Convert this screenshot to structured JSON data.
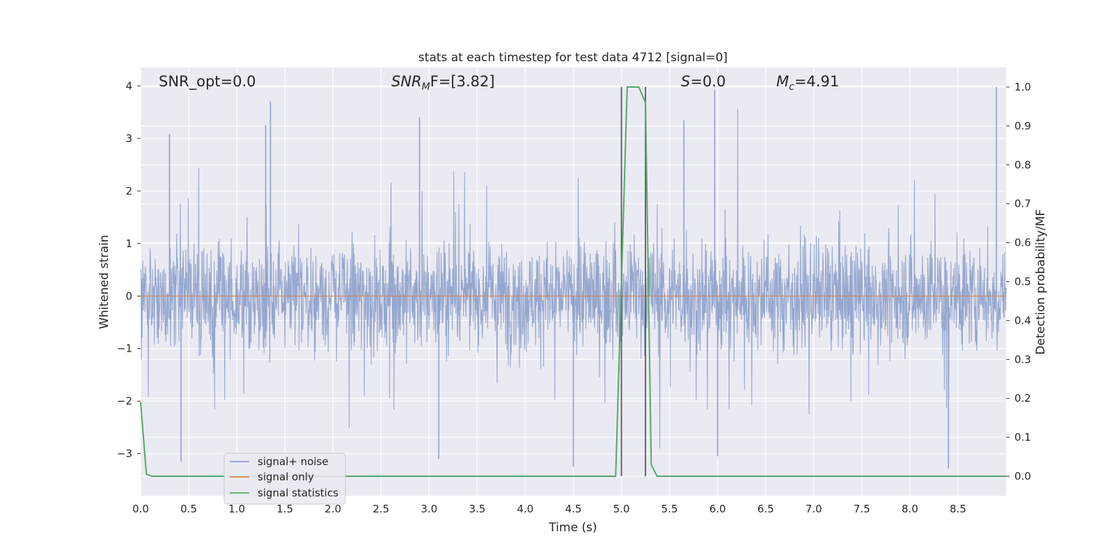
{
  "chart_data": {
    "type": "line",
    "title": "stats at each timestep for test data 4712 [signal=0]",
    "xlabel": "Time (s)",
    "ylabel": "Whitened strain",
    "y2label": "Detection probability/MF",
    "xlim": [
      0.0,
      9.0
    ],
    "ylim": [
      -3.8,
      4.35
    ],
    "y2lim": [
      -0.05,
      1.05
    ],
    "xticks": [
      0.0,
      0.5,
      1.0,
      1.5,
      2.0,
      2.5,
      3.0,
      3.5,
      4.0,
      4.5,
      5.0,
      5.5,
      6.0,
      6.5,
      7.0,
      7.5,
      8.0,
      8.5
    ],
    "xtick_labels": [
      "0.0",
      "0.5",
      "1.0",
      "1.5",
      "2.0",
      "2.5",
      "3.0",
      "3.5",
      "4.0",
      "4.5",
      "5.0",
      "5.5",
      "6.0",
      "6.5",
      "7.0",
      "7.5",
      "8.0",
      "8.5"
    ],
    "yticks": [
      -3,
      -2,
      -1,
      0,
      1,
      2,
      3,
      4
    ],
    "ytick_labels": [
      "−3",
      "−2",
      "−1",
      "0",
      "1",
      "2",
      "3",
      "4"
    ],
    "y2ticks": [
      0.0,
      0.1,
      0.2,
      0.3,
      0.4,
      0.5,
      0.6,
      0.7,
      0.8,
      0.9,
      1.0
    ],
    "y2tick_labels": [
      "0.0",
      "0.1",
      "0.2",
      "0.3",
      "0.4",
      "0.5",
      "0.6",
      "0.7",
      "0.8",
      "0.9",
      "1.0"
    ],
    "grid": true,
    "legend_position": "lower-left",
    "annotations": {
      "snr_opt": "SNR_opt=0.0",
      "snr_mf_main": "SNR",
      "snr_mf_sub": "M",
      "snr_mf_rest": "F=[3.82]",
      "s_main": "S",
      "s_rest": "=0.0",
      "mc_main": "M",
      "mc_sub": "c",
      "mc_rest": "=4.91"
    },
    "series": [
      {
        "name": "signal+ noise",
        "color": "#8da0cb",
        "kind": "noise",
        "approx_envelope": {
          "typical_min": -1.9,
          "typical_max": 1.8,
          "peak_max": 4.0,
          "peak_min": -3.3
        },
        "notable_peaks": [
          {
            "x": 1.35,
            "y": 3.7
          },
          {
            "x": 1.3,
            "y": 3.25
          },
          {
            "x": 2.9,
            "y": 3.4
          },
          {
            "x": 5.97,
            "y": 3.92
          },
          {
            "x": 8.9,
            "y": 3.98
          },
          {
            "x": 5.65,
            "y": 3.35
          },
          {
            "x": 0.3,
            "y": 3.08
          },
          {
            "x": 0.42,
            "y": -3.15
          },
          {
            "x": 3.1,
            "y": -3.1
          },
          {
            "x": 4.5,
            "y": -3.25
          },
          {
            "x": 8.4,
            "y": -3.28
          },
          {
            "x": 6.0,
            "y": -3.05
          }
        ]
      },
      {
        "name": "signal only",
        "color": "#dd8452",
        "values_x": [
          0.0,
          9.0
        ],
        "values_y": [
          0.0,
          0.0
        ]
      },
      {
        "name": "signal statistics",
        "color": "#55a868",
        "axis": "right",
        "x": [
          0.0,
          0.06,
          0.12,
          4.94,
          5.0,
          5.06,
          5.18,
          5.25,
          5.31,
          5.37,
          9.0
        ],
        "y": [
          0.19,
          0.005,
          0.0,
          0.0,
          0.5,
          1.0,
          1.0,
          0.96,
          0.03,
          0.0,
          0.0
        ]
      }
    ],
    "vertical_lines": [
      {
        "x": 5.0,
        "color": "#5a5a5a"
      },
      {
        "x": 5.25,
        "color": "#5a5a5a"
      }
    ]
  }
}
